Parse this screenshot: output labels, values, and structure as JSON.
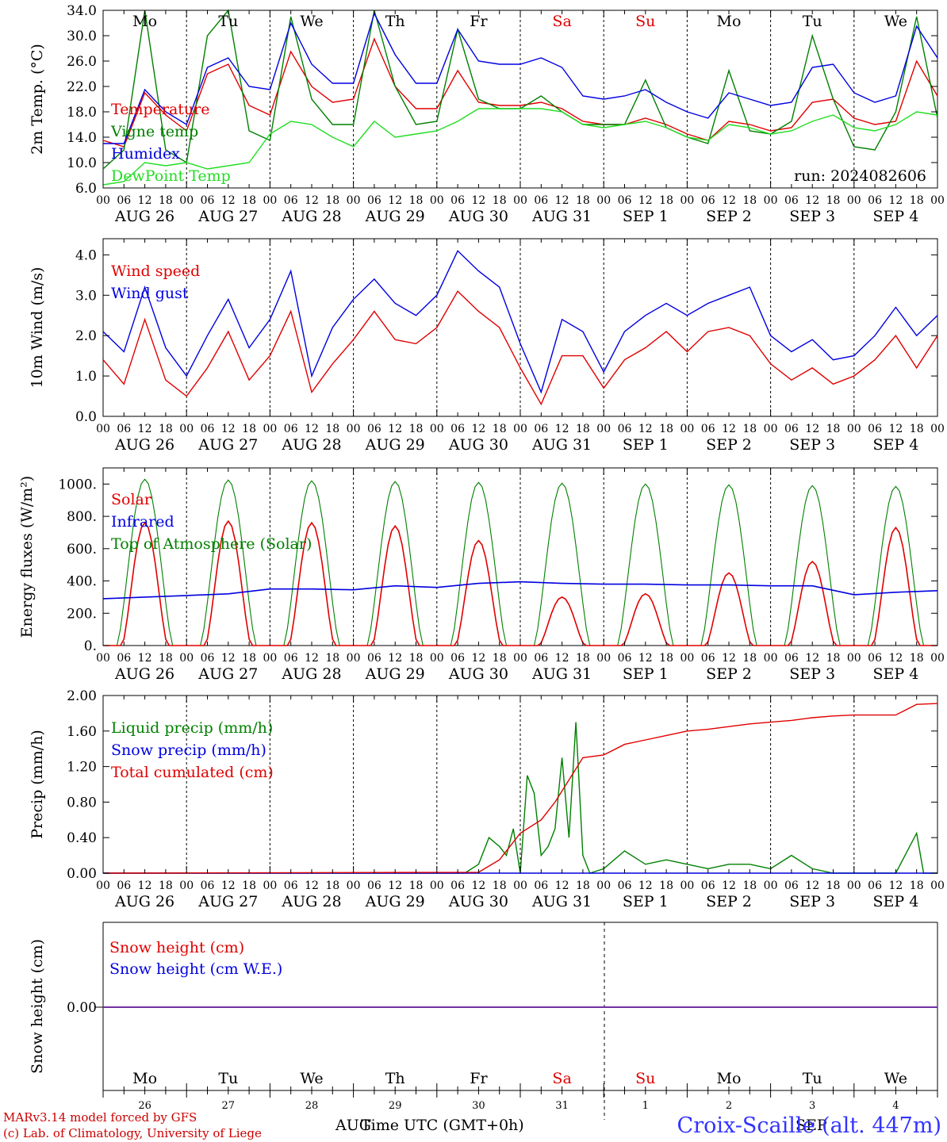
{
  "footer": {
    "credit1": "MARv3.14 model forced by GFS",
    "credit2": "(c) Lab. of Climatology, University of Liege",
    "station": "Croix-Scaille (alt. 447m)",
    "xlabel": "Time UTC (GMT+0h)",
    "month_left": "AUG",
    "month_right": "SEP"
  },
  "colors": {
    "red": "#e00000",
    "green": "#008000",
    "blue": "#0000e0",
    "lightgreen": "#22dd22",
    "purple": "#7030a0"
  },
  "hour_ticks": [
    "00",
    "06",
    "12",
    "18"
  ],
  "date_labels": [
    "AUG 26",
    "AUG 27",
    "AUG 28",
    "AUG 29",
    "AUG 30",
    "AUG 31",
    "SEP  1",
    "SEP  2",
    "SEP  3",
    "SEP  4"
  ],
  "weekday_labels": [
    "Mo",
    "Tu",
    "We",
    "Th",
    "Fr",
    "Sa",
    "Su",
    "Mo",
    "Tu",
    "We"
  ],
  "weekend_flags": [
    false,
    false,
    false,
    false,
    false,
    true,
    true,
    false,
    false,
    false
  ],
  "day_numbers": [
    "26",
    "27",
    "28",
    "29",
    "30",
    "31",
    "1",
    "2",
    "3",
    "4"
  ],
  "chart_data": [
    {
      "type": "line",
      "ylabel": "2m Temp. (°C)",
      "ylim": [
        6,
        34
      ],
      "yticks": [
        "6.0",
        "10.0",
        "14.0",
        "18.0",
        "22.0",
        "26.0",
        "30.0",
        "34.0"
      ],
      "run_label": "run: 2024082606",
      "x_unit": "hours since AUG 26 00 UTC",
      "series": [
        {
          "name": "Temperature",
          "color": "#e00000",
          "x": [
            0,
            6,
            12,
            18,
            24,
            30,
            36,
            42,
            48,
            54,
            60,
            66,
            72,
            78,
            84,
            90,
            96,
            102,
            108,
            114,
            120,
            126,
            132,
            138,
            144,
            150,
            156,
            162,
            168,
            174,
            180,
            186,
            192,
            198,
            204,
            210,
            216,
            222,
            228,
            234,
            240
          ],
          "values": [
            13.5,
            12.5,
            21.0,
            17.5,
            15.0,
            24.0,
            25.5,
            19.0,
            17.5,
            27.5,
            22.0,
            19.5,
            20.0,
            29.5,
            22.0,
            18.5,
            18.5,
            24.5,
            19.5,
            19.0,
            19.0,
            19.5,
            18.5,
            16.5,
            16.0,
            16.0,
            17.0,
            16.0,
            14.5,
            13.5,
            16.5,
            16.0,
            15.0,
            15.5,
            19.5,
            20.0,
            17.0,
            16.0,
            16.5,
            26.0,
            20.5
          ]
        },
        {
          "name": "Vigne temp",
          "color": "#008000",
          "x": [
            0,
            6,
            12,
            18,
            24,
            30,
            36,
            42,
            48,
            54,
            60,
            66,
            72,
            78,
            84,
            90,
            96,
            102,
            108,
            114,
            120,
            126,
            132,
            138,
            144,
            150,
            156,
            162,
            168,
            174,
            180,
            186,
            192,
            198,
            204,
            210,
            216,
            222,
            228,
            234,
            240
          ],
          "values": [
            9.0,
            12.0,
            34.0,
            12.0,
            10.0,
            30.0,
            34.0,
            15.0,
            13.5,
            33.0,
            20.0,
            16.0,
            16.0,
            34.0,
            22.0,
            16.0,
            16.5,
            31.0,
            20.0,
            18.5,
            18.5,
            20.5,
            18.0,
            16.0,
            16.0,
            16.0,
            23.0,
            15.5,
            14.0,
            13.0,
            24.5,
            15.0,
            14.5,
            16.5,
            30.0,
            20.0,
            12.5,
            12.0,
            18.0,
            33.0,
            17.0
          ]
        },
        {
          "name": "Humidex",
          "color": "#0000e0",
          "x": [
            0,
            6,
            12,
            18,
            24,
            30,
            36,
            42,
            48,
            54,
            60,
            66,
            72,
            78,
            84,
            90,
            96,
            102,
            108,
            114,
            120,
            126,
            132,
            138,
            144,
            150,
            156,
            162,
            168,
            174,
            180,
            186,
            192,
            198,
            204,
            210,
            216,
            222,
            228,
            234,
            240
          ],
          "values": [
            13.0,
            13.0,
            21.5,
            18.0,
            16.0,
            25.0,
            26.5,
            22.0,
            21.5,
            32.0,
            25.5,
            22.5,
            22.5,
            33.5,
            27.0,
            22.5,
            22.5,
            31.0,
            26.0,
            25.5,
            25.5,
            26.5,
            25.0,
            20.5,
            20.0,
            20.5,
            21.5,
            19.5,
            18.0,
            17.0,
            21.0,
            20.0,
            19.0,
            19.5,
            25.0,
            25.5,
            21.0,
            19.5,
            20.5,
            31.5,
            26.5
          ]
        },
        {
          "name": "DewPoint Temp",
          "color": "#22dd22",
          "x": [
            0,
            6,
            12,
            18,
            24,
            30,
            36,
            42,
            48,
            54,
            60,
            66,
            72,
            78,
            84,
            90,
            96,
            102,
            108,
            114,
            120,
            126,
            132,
            138,
            144,
            150,
            156,
            162,
            168,
            174,
            180,
            186,
            192,
            198,
            204,
            210,
            216,
            222,
            228,
            234,
            240
          ],
          "values": [
            6.5,
            7.0,
            10.0,
            9.5,
            10.0,
            9.0,
            9.5,
            10.0,
            14.5,
            16.5,
            16.0,
            14.0,
            12.5,
            16.5,
            14.0,
            14.5,
            15.0,
            16.5,
            18.5,
            18.5,
            18.5,
            18.5,
            18.0,
            16.0,
            15.5,
            16.0,
            16.5,
            15.5,
            14.0,
            13.5,
            16.0,
            15.5,
            14.5,
            15.0,
            16.5,
            17.5,
            15.5,
            15.0,
            16.0,
            18.0,
            17.5
          ]
        }
      ]
    },
    {
      "type": "line",
      "ylabel": "10m Wind (m/s)",
      "ylim": [
        0,
        4.4
      ],
      "yticks": [
        "0.0",
        "1.0",
        "2.0",
        "3.0",
        "4.0"
      ],
      "x_unit": "hours since AUG 26 00 UTC",
      "series": [
        {
          "name": "Wind speed",
          "color": "#e00000",
          "x": [
            0,
            6,
            12,
            18,
            24,
            30,
            36,
            42,
            48,
            54,
            60,
            66,
            72,
            78,
            84,
            90,
            96,
            102,
            108,
            114,
            120,
            126,
            132,
            138,
            144,
            150,
            156,
            162,
            168,
            174,
            180,
            186,
            192,
            198,
            204,
            210,
            216,
            222,
            228,
            234,
            240
          ],
          "values": [
            1.4,
            0.8,
            2.4,
            0.9,
            0.5,
            1.2,
            2.1,
            0.9,
            1.5,
            2.6,
            0.6,
            1.3,
            1.9,
            2.6,
            1.9,
            1.8,
            2.2,
            3.1,
            2.6,
            2.2,
            1.2,
            0.3,
            1.5,
            1.5,
            0.7,
            1.4,
            1.7,
            2.1,
            1.6,
            2.1,
            2.2,
            2.0,
            1.3,
            0.9,
            1.2,
            0.8,
            1.0,
            1.4,
            2.0,
            1.2,
            2.0
          ]
        },
        {
          "name": "Wind gust",
          "color": "#0000e0",
          "x": [
            0,
            6,
            12,
            18,
            24,
            30,
            36,
            42,
            48,
            54,
            60,
            66,
            72,
            78,
            84,
            90,
            96,
            102,
            108,
            114,
            120,
            126,
            132,
            138,
            144,
            150,
            156,
            162,
            168,
            174,
            180,
            186,
            192,
            198,
            204,
            210,
            216,
            222,
            228,
            234,
            240
          ],
          "values": [
            2.1,
            1.6,
            3.2,
            1.7,
            1.0,
            2.0,
            2.9,
            1.7,
            2.4,
            3.6,
            1.0,
            2.2,
            2.9,
            3.4,
            2.8,
            2.5,
            3.0,
            4.1,
            3.6,
            3.2,
            1.8,
            0.6,
            2.4,
            2.1,
            1.1,
            2.1,
            2.5,
            2.8,
            2.5,
            2.8,
            3.0,
            3.2,
            2.0,
            1.6,
            1.9,
            1.4,
            1.5,
            2.0,
            2.7,
            2.0,
            2.5
          ]
        }
      ]
    },
    {
      "type": "line",
      "ylabel": "Energy fluxes (W/m²)",
      "ylim": [
        0,
        1100
      ],
      "yticks": [
        "0.",
        "200.",
        "400.",
        "600.",
        "800.",
        "1000."
      ],
      "x_unit": "hours since AUG 26 00 UTC",
      "series": [
        {
          "name": "Solar",
          "color": "#e00000",
          "day_peaks": [
            760,
            770,
            760,
            740,
            650,
            300,
            320,
            450,
            520,
            730
          ]
        },
        {
          "name": "Infrared",
          "color": "#0000e0",
          "x": [
            0,
            12,
            24,
            36,
            48,
            60,
            72,
            84,
            96,
            108,
            120,
            132,
            144,
            156,
            168,
            180,
            192,
            204,
            216,
            228,
            240
          ],
          "values": [
            290,
            300,
            310,
            320,
            350,
            350,
            345,
            370,
            360,
            385,
            395,
            385,
            380,
            380,
            375,
            375,
            370,
            370,
            315,
            330,
            340
          ]
        },
        {
          "name": "Top of Atmosphere (Solar)",
          "color": "#008000",
          "day_peaks": [
            1030,
            1025,
            1020,
            1015,
            1010,
            1005,
            1000,
            995,
            990,
            985
          ]
        }
      ]
    },
    {
      "type": "line",
      "ylabel": "Precip (mm/h)",
      "ylim": [
        0,
        2.0
      ],
      "yticks": [
        "0.00",
        "0.40",
        "0.80",
        "1.20",
        "1.60",
        "2.00"
      ],
      "x_unit": "hours since AUG 26 00 UTC",
      "series": [
        {
          "name": "Liquid precip (mm/h)",
          "color": "#008000",
          "x": [
            0,
            96,
            104,
            108,
            111,
            114,
            116,
            118,
            120,
            122,
            124,
            126,
            128,
            130,
            132,
            134,
            136,
            138,
            140,
            144,
            150,
            156,
            162,
            168,
            174,
            180,
            186,
            192,
            198,
            204,
            210,
            216,
            222,
            228,
            232,
            234,
            236,
            240
          ],
          "values": [
            0,
            0,
            0,
            0.1,
            0.4,
            0.3,
            0.2,
            0.5,
            0.0,
            1.1,
            0.9,
            0.2,
            0.3,
            0.5,
            1.3,
            0.4,
            1.7,
            0.2,
            0.0,
            0.05,
            0.25,
            0.1,
            0.15,
            0.1,
            0.05,
            0.1,
            0.1,
            0.05,
            0.2,
            0.05,
            0.0,
            0,
            0,
            0,
            0.3,
            0.45,
            0.0,
            0
          ]
        },
        {
          "name": "Snow precip (mm/h)",
          "color": "#0000e0",
          "x": [
            0,
            240
          ],
          "values": [
            0,
            0
          ]
        },
        {
          "name": "Total cumulated (cm)",
          "color": "#e00000",
          "x": [
            0,
            108,
            114,
            120,
            126,
            130,
            134,
            138,
            144,
            150,
            156,
            162,
            168,
            174,
            180,
            186,
            192,
            198,
            204,
            210,
            216,
            228,
            234,
            240
          ],
          "values": [
            0,
            0.01,
            0.15,
            0.45,
            0.6,
            0.8,
            1.05,
            1.3,
            1.33,
            1.45,
            1.5,
            1.55,
            1.6,
            1.62,
            1.65,
            1.68,
            1.7,
            1.72,
            1.75,
            1.77,
            1.78,
            1.78,
            1.9,
            1.91
          ]
        }
      ]
    },
    {
      "type": "line",
      "ylabel": "Snow height (cm)",
      "yticks": [
        "0.00"
      ],
      "x_unit": "hours since AUG 26 00 UTC",
      "series": [
        {
          "name": "Snow height (cm)",
          "color": "#e00000",
          "x": [
            0,
            240
          ],
          "values": [
            0,
            0
          ]
        },
        {
          "name": "Snow height (cm W.E.)",
          "color": "#0000e0",
          "x": [
            0,
            240
          ],
          "values": [
            0,
            0
          ]
        }
      ]
    }
  ]
}
